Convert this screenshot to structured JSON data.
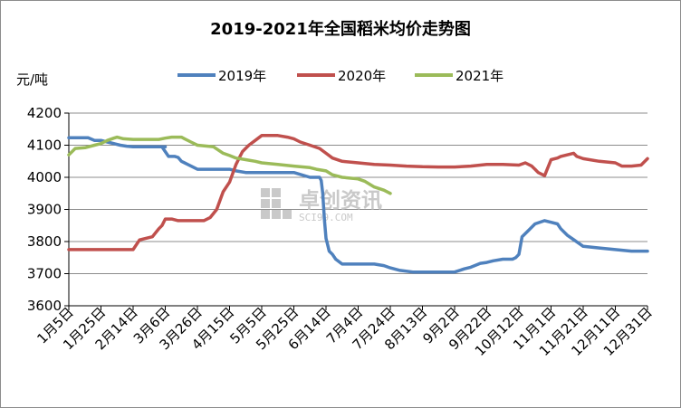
{
  "chart_data": {
    "type": "line",
    "title": "2019-2021年全国稻米均价走势图",
    "ylabel": "元/吨",
    "xlabel": "",
    "ylim": [
      3600,
      4200
    ],
    "yticks": [
      3600,
      3700,
      3800,
      3900,
      4000,
      4100,
      4200
    ],
    "categories": [
      "1月5日",
      "1月25日",
      "2月14日",
      "3月6日",
      "3月26日",
      "4月15日",
      "5月5日",
      "5月25日",
      "6月14日",
      "7月4日",
      "7月24日",
      "8月13日",
      "9月2日",
      "9月22日",
      "10月12日",
      "11月1日",
      "11月21日",
      "12月11日",
      "12月31日"
    ],
    "grid": "horizontal",
    "legend_position": "top",
    "series": [
      {
        "name": "2019年",
        "color": "#4F81BD",
        "x": [
          0,
          0.4,
          0.6,
          0.8,
          1.0,
          1.2,
          1.4,
          1.6,
          1.8,
          2,
          3,
          2.9,
          3.0,
          3.1,
          3.3,
          3.4,
          3.5,
          3.6,
          3.7,
          4.0,
          5.0,
          5.2,
          5.5,
          6.0,
          6.5,
          7.0,
          7.5,
          7.8,
          7.85,
          7.9,
          7.95,
          8.0,
          8.05,
          8.1,
          8.2,
          8.3,
          8.5,
          9.0,
          9.5,
          9.8,
          10.0,
          10.3,
          10.7,
          11.0,
          11.5,
          12.0,
          12.3,
          12.5,
          12.8,
          13.0,
          13.2,
          13.5,
          13.8,
          13.9,
          14.0,
          14.1,
          14.3,
          14.5,
          14.8,
          15.0,
          15.2,
          15.3,
          15.5,
          16.0,
          16.5,
          17.0,
          17.5,
          18.0
        ],
        "y": [
          4123,
          4123,
          4123,
          4115,
          4115,
          4110,
          4105,
          4100,
          4097,
          4095,
          4095,
          4095,
          4080,
          4065,
          4065,
          4062,
          4050,
          4045,
          4040,
          4025,
          4025,
          4020,
          4015,
          4015,
          4015,
          4015,
          4000,
          4000,
          3990,
          3950,
          3870,
          3810,
          3790,
          3770,
          3760,
          3745,
          3730,
          3730,
          3730,
          3725,
          3718,
          3710,
          3705,
          3705,
          3705,
          3705,
          3715,
          3720,
          3732,
          3735,
          3740,
          3745,
          3745,
          3750,
          3760,
          3815,
          3835,
          3855,
          3865,
          3860,
          3855,
          3840,
          3820,
          3785,
          3780,
          3775,
          3770,
          3770
        ]
      },
      {
        "name": "2020年",
        "color": "#C0504D",
        "x": [
          0,
          0.5,
          1.0,
          1.5,
          1.8,
          2.0,
          2.2,
          2.4,
          2.6,
          2.8,
          2.9,
          3.0,
          3.2,
          3.4,
          3.6,
          3.8,
          4.0,
          4.2,
          4.4,
          4.6,
          4.8,
          5.0,
          5.2,
          5.4,
          5.6,
          5.8,
          6.0,
          6.2,
          6.5,
          6.8,
          7.0,
          7.2,
          7.5,
          7.8,
          8.0,
          8.2,
          8.5,
          9.0,
          9.5,
          10.0,
          10.5,
          11.0,
          11.5,
          12.0,
          12.5,
          13.0,
          13.5,
          14.0,
          14.2,
          14.4,
          14.5,
          14.6,
          14.8,
          15.0,
          15.2,
          15.3,
          15.5,
          15.7,
          15.8,
          16.0,
          16.5,
          17.0,
          17.2,
          17.5,
          17.8,
          18.0
        ],
        "y": [
          3775,
          3775,
          3775,
          3775,
          3775,
          3775,
          3805,
          3810,
          3815,
          3840,
          3850,
          3870,
          3870,
          3865,
          3865,
          3865,
          3865,
          3865,
          3875,
          3900,
          3955,
          3985,
          4040,
          4080,
          4100,
          4115,
          4130,
          4130,
          4130,
          4125,
          4120,
          4110,
          4100,
          4090,
          4075,
          4060,
          4050,
          4045,
          4040,
          4038,
          4035,
          4033,
          4032,
          4032,
          4035,
          4040,
          4040,
          4038,
          4045,
          4035,
          4025,
          4015,
          4005,
          4055,
          4060,
          4065,
          4070,
          4075,
          4065,
          4058,
          4050,
          4045,
          4035,
          4035,
          4038,
          4058
        ]
      },
      {
        "name": "2021年",
        "color": "#9BBB59",
        "x": [
          0,
          0.2,
          0.5,
          0.8,
          1.0,
          1.2,
          1.4,
          1.5,
          1.7,
          2.0,
          2.5,
          2.8,
          3.0,
          3.2,
          3.5,
          3.6,
          3.8,
          4.0,
          4.5,
          4.8,
          5.0,
          5.2,
          5.5,
          5.8,
          6.0,
          6.5,
          7.0,
          7.5,
          7.7,
          8.0,
          8.2,
          8.5,
          9.0,
          9.2,
          9.5,
          9.8,
          10.0
        ],
        "y": [
          4070,
          4090,
          4092,
          4100,
          4105,
          4115,
          4122,
          4125,
          4120,
          4118,
          4118,
          4118,
          4122,
          4125,
          4125,
          4120,
          4110,
          4100,
          4095,
          4075,
          4068,
          4060,
          4055,
          4050,
          4045,
          4040,
          4035,
          4030,
          4025,
          4020,
          4008,
          4000,
          3995,
          3988,
          3970,
          3960,
          3950
        ]
      }
    ]
  },
  "watermark": {
    "brand": "卓创资讯",
    "site": "SCI99.COM"
  }
}
